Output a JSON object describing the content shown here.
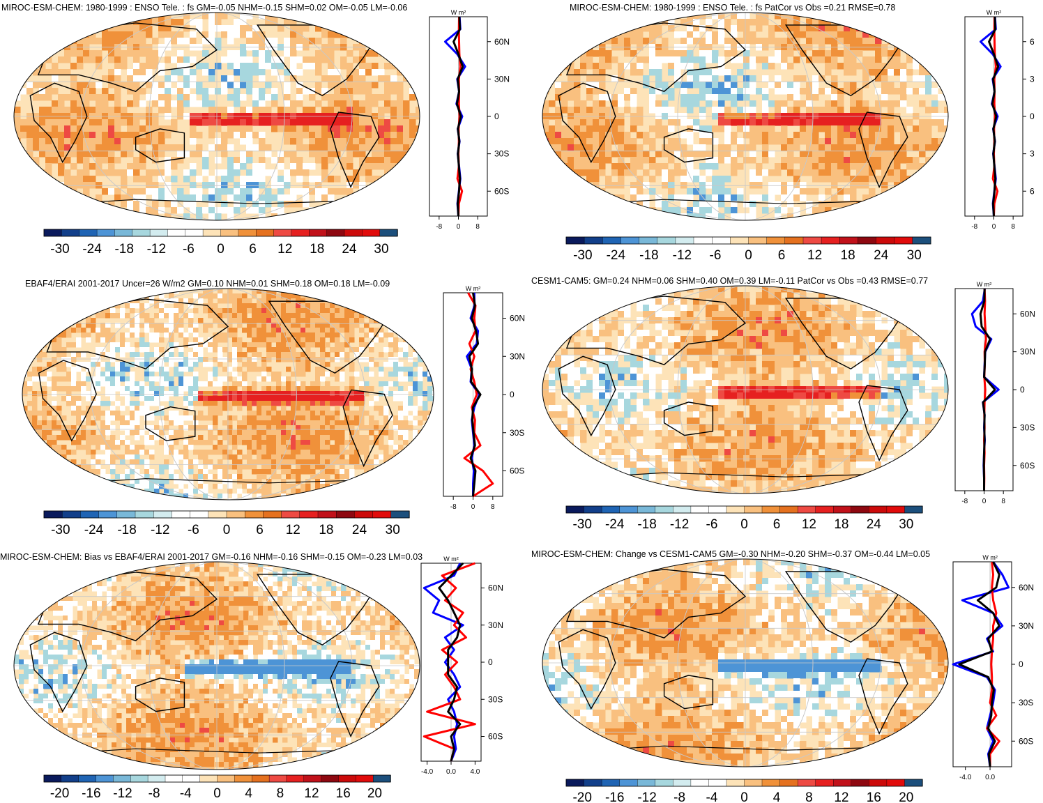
{
  "figure": {
    "colors": {
      "diverging_scale": [
        "#0a1a5c",
        "#123f8a",
        "#1f64b4",
        "#4d94d6",
        "#79b8d8",
        "#a7d7de",
        "#d3ecef",
        "#ffffff",
        "#ffffff",
        "#fde3b8",
        "#f9c07f",
        "#f0913a",
        "#e5711f",
        "#ee4a43",
        "#e62020",
        "#c1111a",
        "#8e0810",
        "#cc0a0a",
        "#e10b0b",
        "#1c4f7c"
      ],
      "land_outline": "#000000",
      "grid": "#c8c8c8",
      "profile_line_1": "#0000ff",
      "profile_line_2": "#ff0000",
      "profile_line_3": "#000000"
    }
  },
  "chart_data": [
    {
      "type": "heatmap",
      "projection": "robinson",
      "title": "MIROC-ESM-CHEM: 1980-1999 : ENSO Tele. : fs GM=-0.05 NHM=-0.15 SHM=0.02 OM=-0.05 LM=-0.06",
      "colorbar": {
        "ticks": [
          "-30",
          "-24",
          "-18",
          "-12",
          "-6",
          "0",
          "6",
          "12",
          "18",
          "24",
          "30"
        ],
        "range": [
          -33,
          33
        ]
      },
      "profile": {
        "type": "line",
        "ylabel": "",
        "unit_label": "W m²",
        "y_ticks": [
          "60N",
          "30N",
          "0",
          "30S",
          "60S"
        ],
        "x_ticks": [
          "-8",
          "0",
          "8"
        ],
        "xlim": [
          -12,
          12
        ],
        "lat": [
          80,
          70,
          60,
          50,
          40,
          30,
          20,
          10,
          0,
          -10,
          -20,
          -30,
          -40,
          -50,
          -60,
          -70,
          -80
        ],
        "series": [
          {
            "values": [
              0.5,
              0.8,
              -5.5,
              -0.5,
              2.8,
              -0.5,
              0.3,
              -0.8,
              1.6,
              -0.3,
              0.5,
              -0.3,
              0.3,
              0.8,
              0.2,
              -0.4,
              0.0
            ]
          },
          {
            "values": [
              0.3,
              0.2,
              0.3,
              0.4,
              0.8,
              0.2,
              0.3,
              0.2,
              0.5,
              0.1,
              0.2,
              0.0,
              0.2,
              -0.4,
              1.5,
              0.2,
              0.0
            ]
          },
          {
            "values": [
              0.4,
              0.6,
              -2.0,
              0.0,
              1.8,
              -0.3,
              0.3,
              -0.6,
              1.0,
              -0.2,
              0.4,
              -0.2,
              0.2,
              0.6,
              0.3,
              -0.3,
              0.0
            ]
          }
        ]
      }
    },
    {
      "type": "heatmap",
      "projection": "robinson",
      "title": "MIROC-ESM-CHEM: 1980-1999 : ENSO Tele. : fs PatCor vs Obs =0.21 RMSE=0.78",
      "colorbar": {
        "ticks": [
          "-30",
          "-24",
          "-18",
          "-12",
          "-6",
          "0",
          "6",
          "12",
          "18",
          "24",
          "30"
        ],
        "range": [
          -33,
          33
        ]
      },
      "profile": {
        "type": "line",
        "ylabel": "",
        "unit_label": "W m²",
        "y_ticks": [
          "6",
          "3",
          "0",
          "3",
          "6"
        ],
        "x_ticks": [
          "-8",
          "0",
          "8"
        ],
        "xlim": [
          -12,
          12
        ],
        "lat": [
          80,
          70,
          60,
          50,
          40,
          30,
          20,
          10,
          0,
          -10,
          -20,
          -30,
          -40,
          -50,
          -60,
          -70,
          -80
        ],
        "series": [
          {
            "values": [
              0.5,
              0.8,
              -5.5,
              -0.5,
              2.8,
              -0.5,
              0.3,
              -0.8,
              1.6,
              -0.3,
              0.5,
              -0.3,
              0.3,
              0.8,
              0.2,
              -0.4,
              0.0
            ]
          },
          {
            "values": [
              0.3,
              0.2,
              0.3,
              0.4,
              0.8,
              0.2,
              0.3,
              0.2,
              0.5,
              0.1,
              0.2,
              0.0,
              0.2,
              -0.4,
              1.5,
              0.2,
              0.0
            ]
          },
          {
            "values": [
              0.4,
              0.6,
              -2.0,
              0.0,
              1.8,
              -0.3,
              0.3,
              -0.6,
              1.0,
              -0.2,
              0.4,
              -0.2,
              0.2,
              0.6,
              0.3,
              -0.3,
              0.0
            ]
          }
        ]
      }
    },
    {
      "type": "heatmap",
      "projection": "robinson",
      "title": "EBAF4/ERAI 2001-2017 Uncer=26 W/m2 GM=0.10 NHM=0.01 SHM=0.18 OM=0.18 LM=-0.09",
      "colorbar": {
        "ticks": [
          "-30",
          "-24",
          "-18",
          "-12",
          "-6",
          "0",
          "6",
          "12",
          "18",
          "24",
          "30"
        ],
        "range": [
          -33,
          33
        ]
      },
      "profile": {
        "type": "line",
        "ylabel": "",
        "unit_label": "W m²",
        "y_ticks": [
          "60N",
          "30N",
          "0",
          "30S",
          "60S"
        ],
        "x_ticks": [
          "-8",
          "0",
          "8"
        ],
        "xlim": [
          -12,
          12
        ],
        "lat": [
          80,
          70,
          60,
          50,
          40,
          30,
          20,
          10,
          0,
          -10,
          -20,
          -30,
          -40,
          -50,
          -60,
          -70,
          -80
        ],
        "series": [
          {
            "values": [
              0.5,
              0.6,
              -1.0,
              2.0,
              1.5,
              -2.5,
              -0.5,
              -1.0,
              2.5,
              0.5,
              -0.5,
              0.0,
              0.5,
              -0.5,
              0.3,
              0.0,
              0.0
            ]
          },
          {
            "values": [
              -2.0,
              1.0,
              0.5,
              1.0,
              -1.5,
              0.5,
              -1.0,
              0.5,
              1.5,
              -0.5,
              0.8,
              0.5,
              3.0,
              -3.5,
              4.0,
              8.0,
              0.0
            ]
          },
          {
            "values": [
              0.0,
              0.8,
              -0.5,
              1.2,
              2.0,
              -1.5,
              -0.5,
              -0.8,
              3.0,
              0.0,
              -0.3,
              0.2,
              0.8,
              -1.0,
              1.0,
              0.5,
              0.0
            ]
          }
        ]
      }
    },
    {
      "type": "heatmap",
      "projection": "robinson",
      "title": "CESM1-CAM5: GM=0.24 NHM=0.06 SHM=0.40 OM=0.39 LM=-0.11 PatCor vs Obs =0.43 RMSE=0.77",
      "colorbar": {
        "ticks": [
          "-30",
          "-24",
          "-18",
          "-12",
          "-6",
          "0",
          "6",
          "12",
          "18",
          "24",
          "30"
        ],
        "range": [
          -33,
          33
        ]
      },
      "profile": {
        "type": "line",
        "ylabel": "",
        "unit_label": "W m²",
        "y_ticks": [
          "60N",
          "30N",
          "0",
          "30S",
          "60S"
        ],
        "x_ticks": [
          "-8",
          "0",
          "8"
        ],
        "xlim": [
          -12,
          12
        ],
        "lat": [
          80,
          70,
          60,
          50,
          40,
          30,
          20,
          10,
          0,
          -10,
          -20,
          -30,
          -40,
          -50,
          -60,
          -70,
          -80
        ],
        "series": [
          {
            "values": [
              0.3,
              -0.5,
              -5.0,
              -3.5,
              3.0,
              0.5,
              0.2,
              0.0,
              6.0,
              -0.5,
              0.2,
              0.0,
              0.3,
              0.0,
              -0.2,
              0.0,
              0.0
            ]
          },
          {
            "values": [
              0.2,
              0.4,
              0.2,
              0.5,
              0.8,
              0.2,
              0.3,
              0.1,
              0.5,
              0.2,
              0.1,
              0.2,
              0.0,
              0.2,
              0.0,
              0.1,
              0.0
            ]
          },
          {
            "values": [
              0.2,
              0.1,
              -1.5,
              -1.0,
              2.5,
              0.4,
              0.3,
              0.0,
              4.5,
              -0.4,
              0.2,
              0.1,
              0.2,
              0.0,
              -0.1,
              0.0,
              0.0
            ]
          }
        ]
      }
    },
    {
      "type": "heatmap",
      "projection": "robinson",
      "title": "MIROC-ESM-CHEM: Bias vs EBAF4/ERAI 2001-2017 GM=-0.16 NHM=-0.16 SHM=-0.15 OM=-0.23 LM=0.03",
      "colorbar": {
        "ticks": [
          "-20",
          "-16",
          "-12",
          "-8",
          "-4",
          "0",
          "4",
          "8",
          "12",
          "16",
          "20"
        ],
        "range": [
          -22,
          22
        ]
      },
      "profile": {
        "type": "line",
        "ylabel": "",
        "unit_label": "W m²",
        "y_ticks": [
          "60N",
          "30N",
          "0",
          "30S",
          "60S"
        ],
        "x_ticks": [
          "-4.0",
          "0.0",
          "4.0"
        ],
        "xlim": [
          -5,
          5
        ],
        "lat": [
          80,
          70,
          60,
          50,
          40,
          30,
          20,
          10,
          0,
          -10,
          -20,
          -30,
          -40,
          -50,
          -60,
          -70,
          -80
        ],
        "series": [
          {
            "values": [
              1.5,
              0.5,
              -4.5,
              -2.0,
              -3.0,
              2.0,
              -1.0,
              0.5,
              -1.0,
              0.5,
              1.5,
              -0.5,
              0.5,
              1.0,
              0.5,
              0.8,
              0.0
            ]
          },
          {
            "values": [
              4.0,
              -1.5,
              0.8,
              -1.0,
              2.0,
              0.5,
              2.5,
              -1.5,
              1.0,
              -1.0,
              0.5,
              1.5,
              -4.0,
              4.0,
              -4.5,
              0.5,
              0.0
            ]
          },
          {
            "values": [
              2.0,
              0.0,
              -2.0,
              -0.5,
              0.5,
              1.5,
              1.0,
              -0.5,
              -0.5,
              -0.5,
              1.0,
              0.5,
              -0.5,
              1.5,
              0.0,
              0.5,
              0.0
            ]
          }
        ]
      }
    },
    {
      "type": "heatmap",
      "projection": "robinson",
      "title": "MIROC-ESM-CHEM: Change vs CESM1-CAM5 GM=-0.30 NHM=-0.20 SHM=-0.37 OM=-0.44 LM=0.05",
      "colorbar": {
        "ticks": [
          "-20",
          "-16",
          "-12",
          "-8",
          "-4",
          "0",
          "4",
          "8",
          "12",
          "16",
          "20"
        ],
        "range": [
          -22,
          22
        ]
      },
      "profile": {
        "type": "line",
        "ylabel": "",
        "unit_label": "W m²",
        "y_ticks": [
          "60N",
          "30N",
          "0",
          "30S",
          "60S"
        ],
        "x_ticks": [
          "-4.0",
          "0.0"
        ],
        "xlim": [
          -6,
          3.5
        ],
        "lat": [
          80,
          70,
          60,
          50,
          40,
          30,
          20,
          10,
          0,
          -10,
          -20,
          -30,
          -40,
          -50,
          -60,
          -70,
          -80
        ],
        "series": [
          {
            "values": [
              0.5,
              2.0,
              3.0,
              -4.5,
              0.5,
              2.0,
              -0.5,
              0.5,
              -6.0,
              -0.5,
              0.8,
              0.5,
              0.0,
              -0.5,
              0.5,
              -0.3,
              0.0
            ]
          },
          {
            "values": [
              0.3,
              0.5,
              0.3,
              0.5,
              1.0,
              0.5,
              0.5,
              0.3,
              0.2,
              0.3,
              0.3,
              0.0,
              1.0,
              -0.5,
              1.5,
              0.0,
              0.0
            ]
          },
          {
            "values": [
              0.5,
              1.5,
              1.0,
              -2.0,
              0.5,
              1.5,
              -0.3,
              0.3,
              -5.0,
              -0.3,
              0.6,
              0.3,
              0.2,
              -0.3,
              0.8,
              -0.2,
              0.0
            ]
          }
        ]
      }
    }
  ]
}
